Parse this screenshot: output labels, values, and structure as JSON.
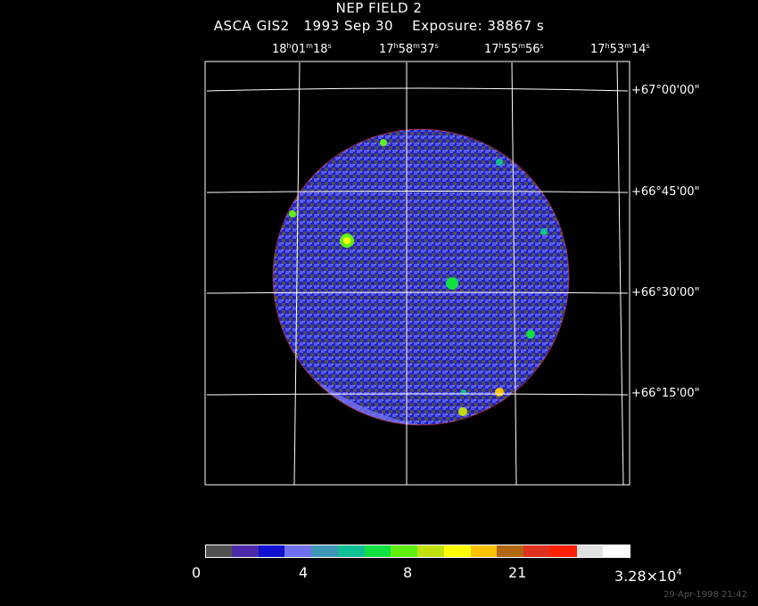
{
  "title": "NEP FIELD 2",
  "subtitle": "ASCA GIS2   1993 Sep 30    Exposure: 38867 s",
  "ra_labels": [
    {
      "h": "18",
      "m": "01",
      "s": "18"
    },
    {
      "h": "17",
      "m": "58",
      "s": "37"
    },
    {
      "h": "17",
      "m": "55",
      "s": "56"
    },
    {
      "h": "17",
      "m": "53",
      "s": "14"
    }
  ],
  "dec_labels": [
    "+67°00'00\"",
    "+66°45'00\"",
    "+66°30'00\"",
    "+66°15'00\""
  ],
  "colorbar": {
    "colors": [
      "#505050",
      "#4a2aa8",
      "#1010d0",
      "#7070f0",
      "#3f97b8",
      "#0fc095",
      "#10e040",
      "#60f010",
      "#c0e010",
      "#ffff00",
      "#ffc000",
      "#b06810",
      "#e03020",
      "#ff2000",
      "#e0e0e0",
      "#ffffff"
    ],
    "ticks": [
      "0",
      "4",
      "8",
      "21"
    ],
    "max_mantissa": "3.28×10",
    "max_exponent": "4"
  },
  "timestamp": "29-Apr-1998 21:42"
}
